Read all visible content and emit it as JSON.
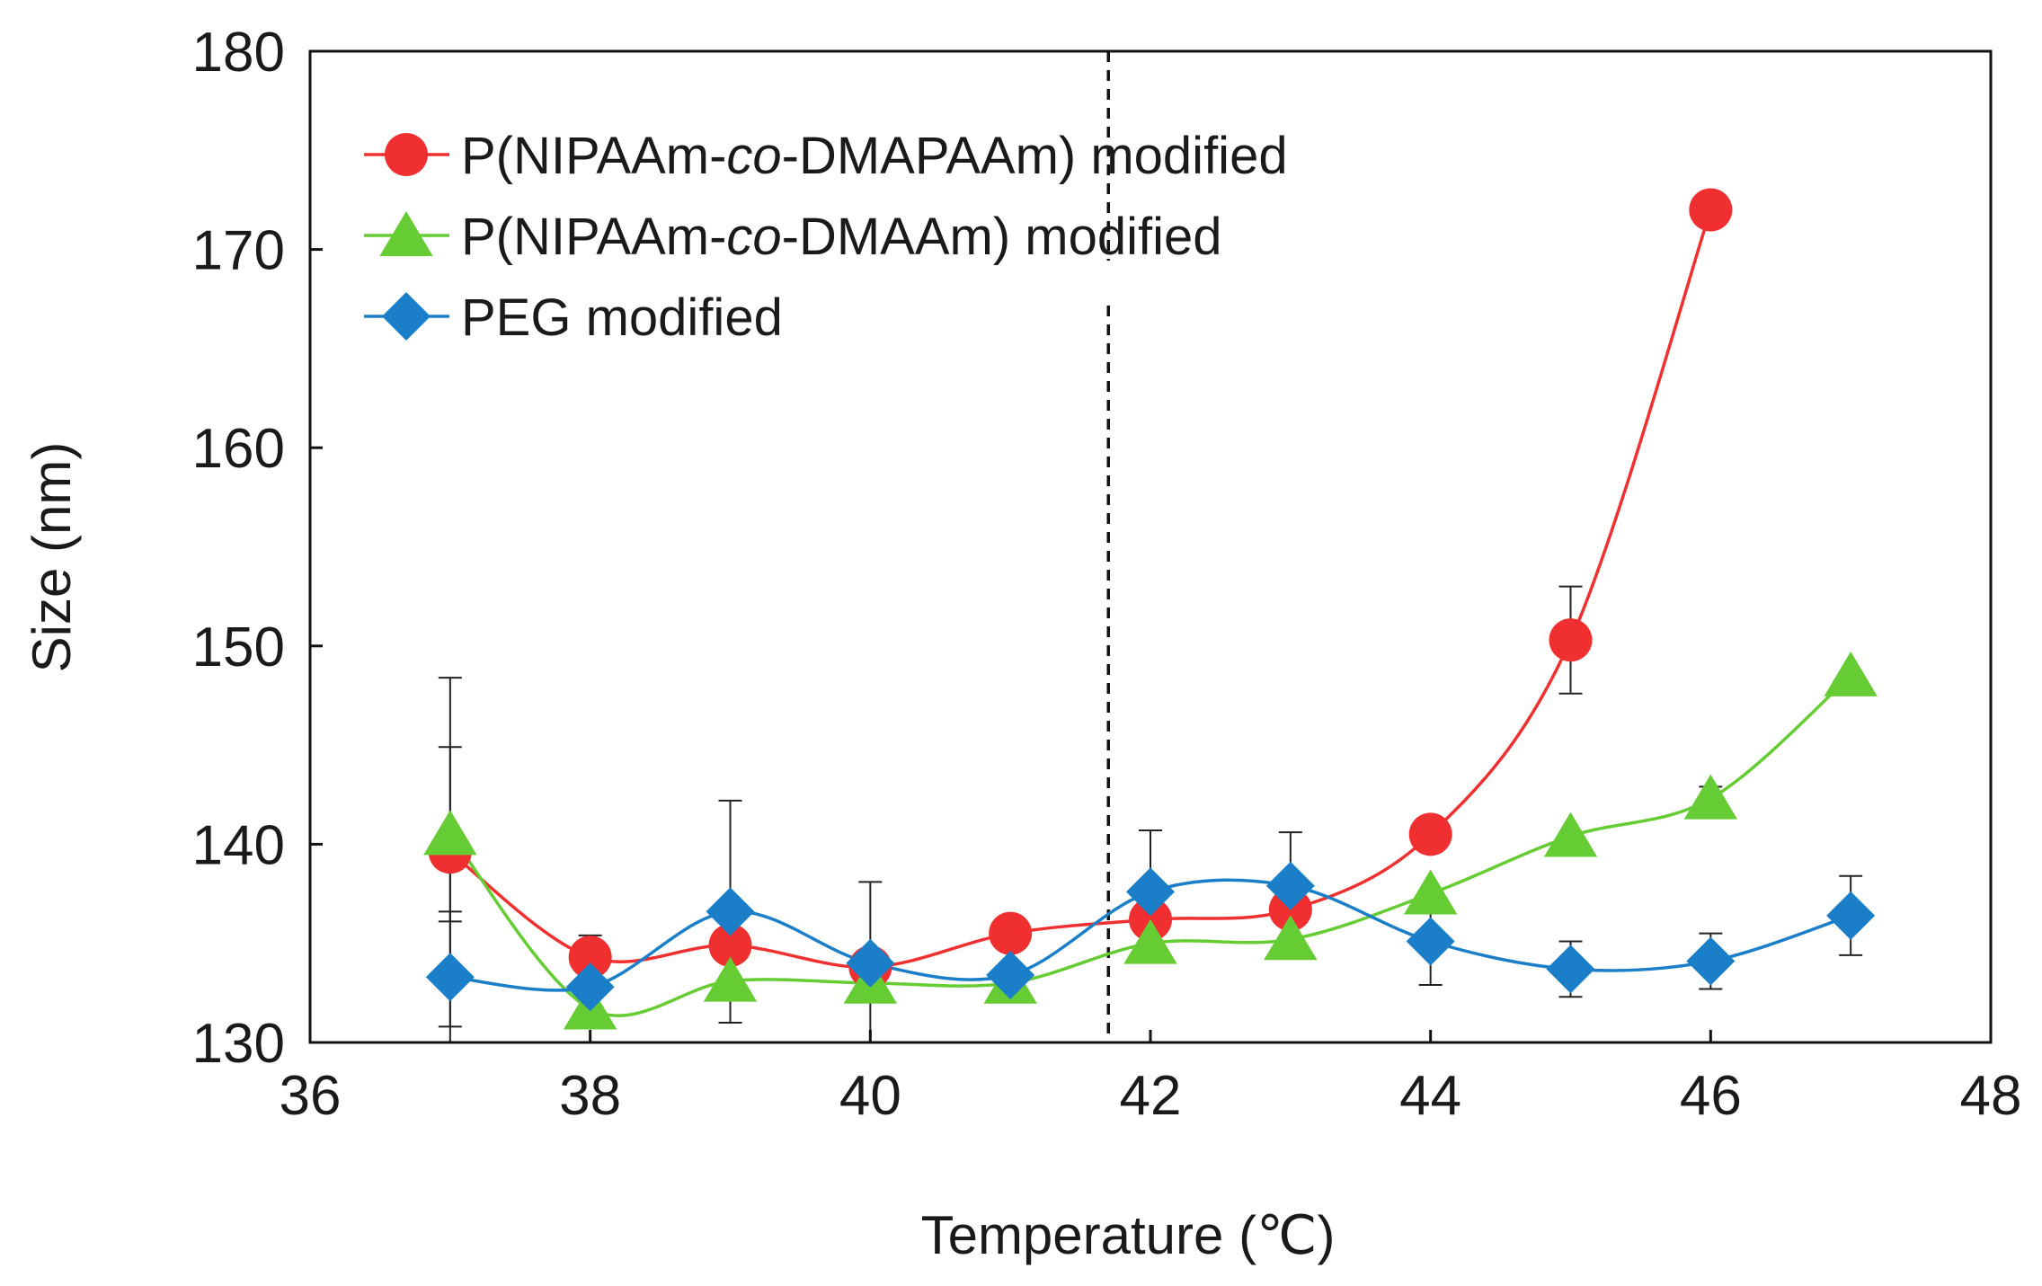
{
  "chart_data": {
    "type": "line",
    "title": "",
    "xlabel": "Temperature (℃)",
    "ylabel": "Size (nm)",
    "xlim": [
      36,
      48
    ],
    "ylim": [
      130,
      180
    ],
    "xticks": [
      36,
      38,
      40,
      42,
      44,
      46,
      48
    ],
    "yticks": [
      130,
      140,
      150,
      160,
      170,
      180
    ],
    "grid": false,
    "legend_position": "top-left",
    "reference_line": {
      "x": 41.7,
      "style": "dashed"
    },
    "series": [
      {
        "name": "P(NIPAAm-co-DMAPAAm) modified",
        "name_parts": [
          "P(NIPAAm-",
          "co",
          "-DMAPAAm) modified"
        ],
        "color": "#f03030",
        "marker": "circle",
        "x": [
          37,
          38,
          39,
          40,
          41,
          42,
          43,
          44,
          45,
          46
        ],
        "y": [
          139.6,
          134.3,
          134.9,
          133.8,
          135.5,
          136.2,
          136.7,
          140.5,
          150.3,
          172.0
        ],
        "err": [
          8.8,
          1.1,
          0,
          0,
          0,
          0,
          0,
          0,
          2.7,
          0
        ]
      },
      {
        "name": "P(NIPAAm-co-DMAAm) modified",
        "name_parts": [
          "P(NIPAAm-",
          "co",
          "-DMAAm) modified"
        ],
        "color": "#66cc33",
        "marker": "triangle",
        "x": [
          37,
          38,
          39,
          40,
          41,
          42,
          43,
          44,
          45,
          46,
          47
        ],
        "y": [
          140.5,
          131.7,
          133.1,
          133.0,
          133.0,
          135.0,
          135.2,
          137.5,
          140.4,
          142.3,
          148.5
        ],
        "err": [
          4.4,
          0,
          0,
          0,
          0,
          0,
          0,
          0,
          0,
          0.6,
          0
        ]
      },
      {
        "name": "PEG modified",
        "name_parts": [
          "PEG modified",
          "",
          ""
        ],
        "color": "#1a7fc8",
        "marker": "diamond",
        "x": [
          37,
          38,
          39,
          40,
          41,
          42,
          43,
          44,
          45,
          46,
          47
        ],
        "y": [
          133.3,
          132.8,
          136.6,
          134.0,
          133.4,
          137.6,
          137.9,
          135.1,
          133.7,
          134.1,
          136.4
        ],
        "err": [
          3.3,
          0,
          5.6,
          4.1,
          0,
          3.1,
          2.7,
          2.2,
          1.4,
          1.4,
          2.0
        ]
      }
    ]
  }
}
